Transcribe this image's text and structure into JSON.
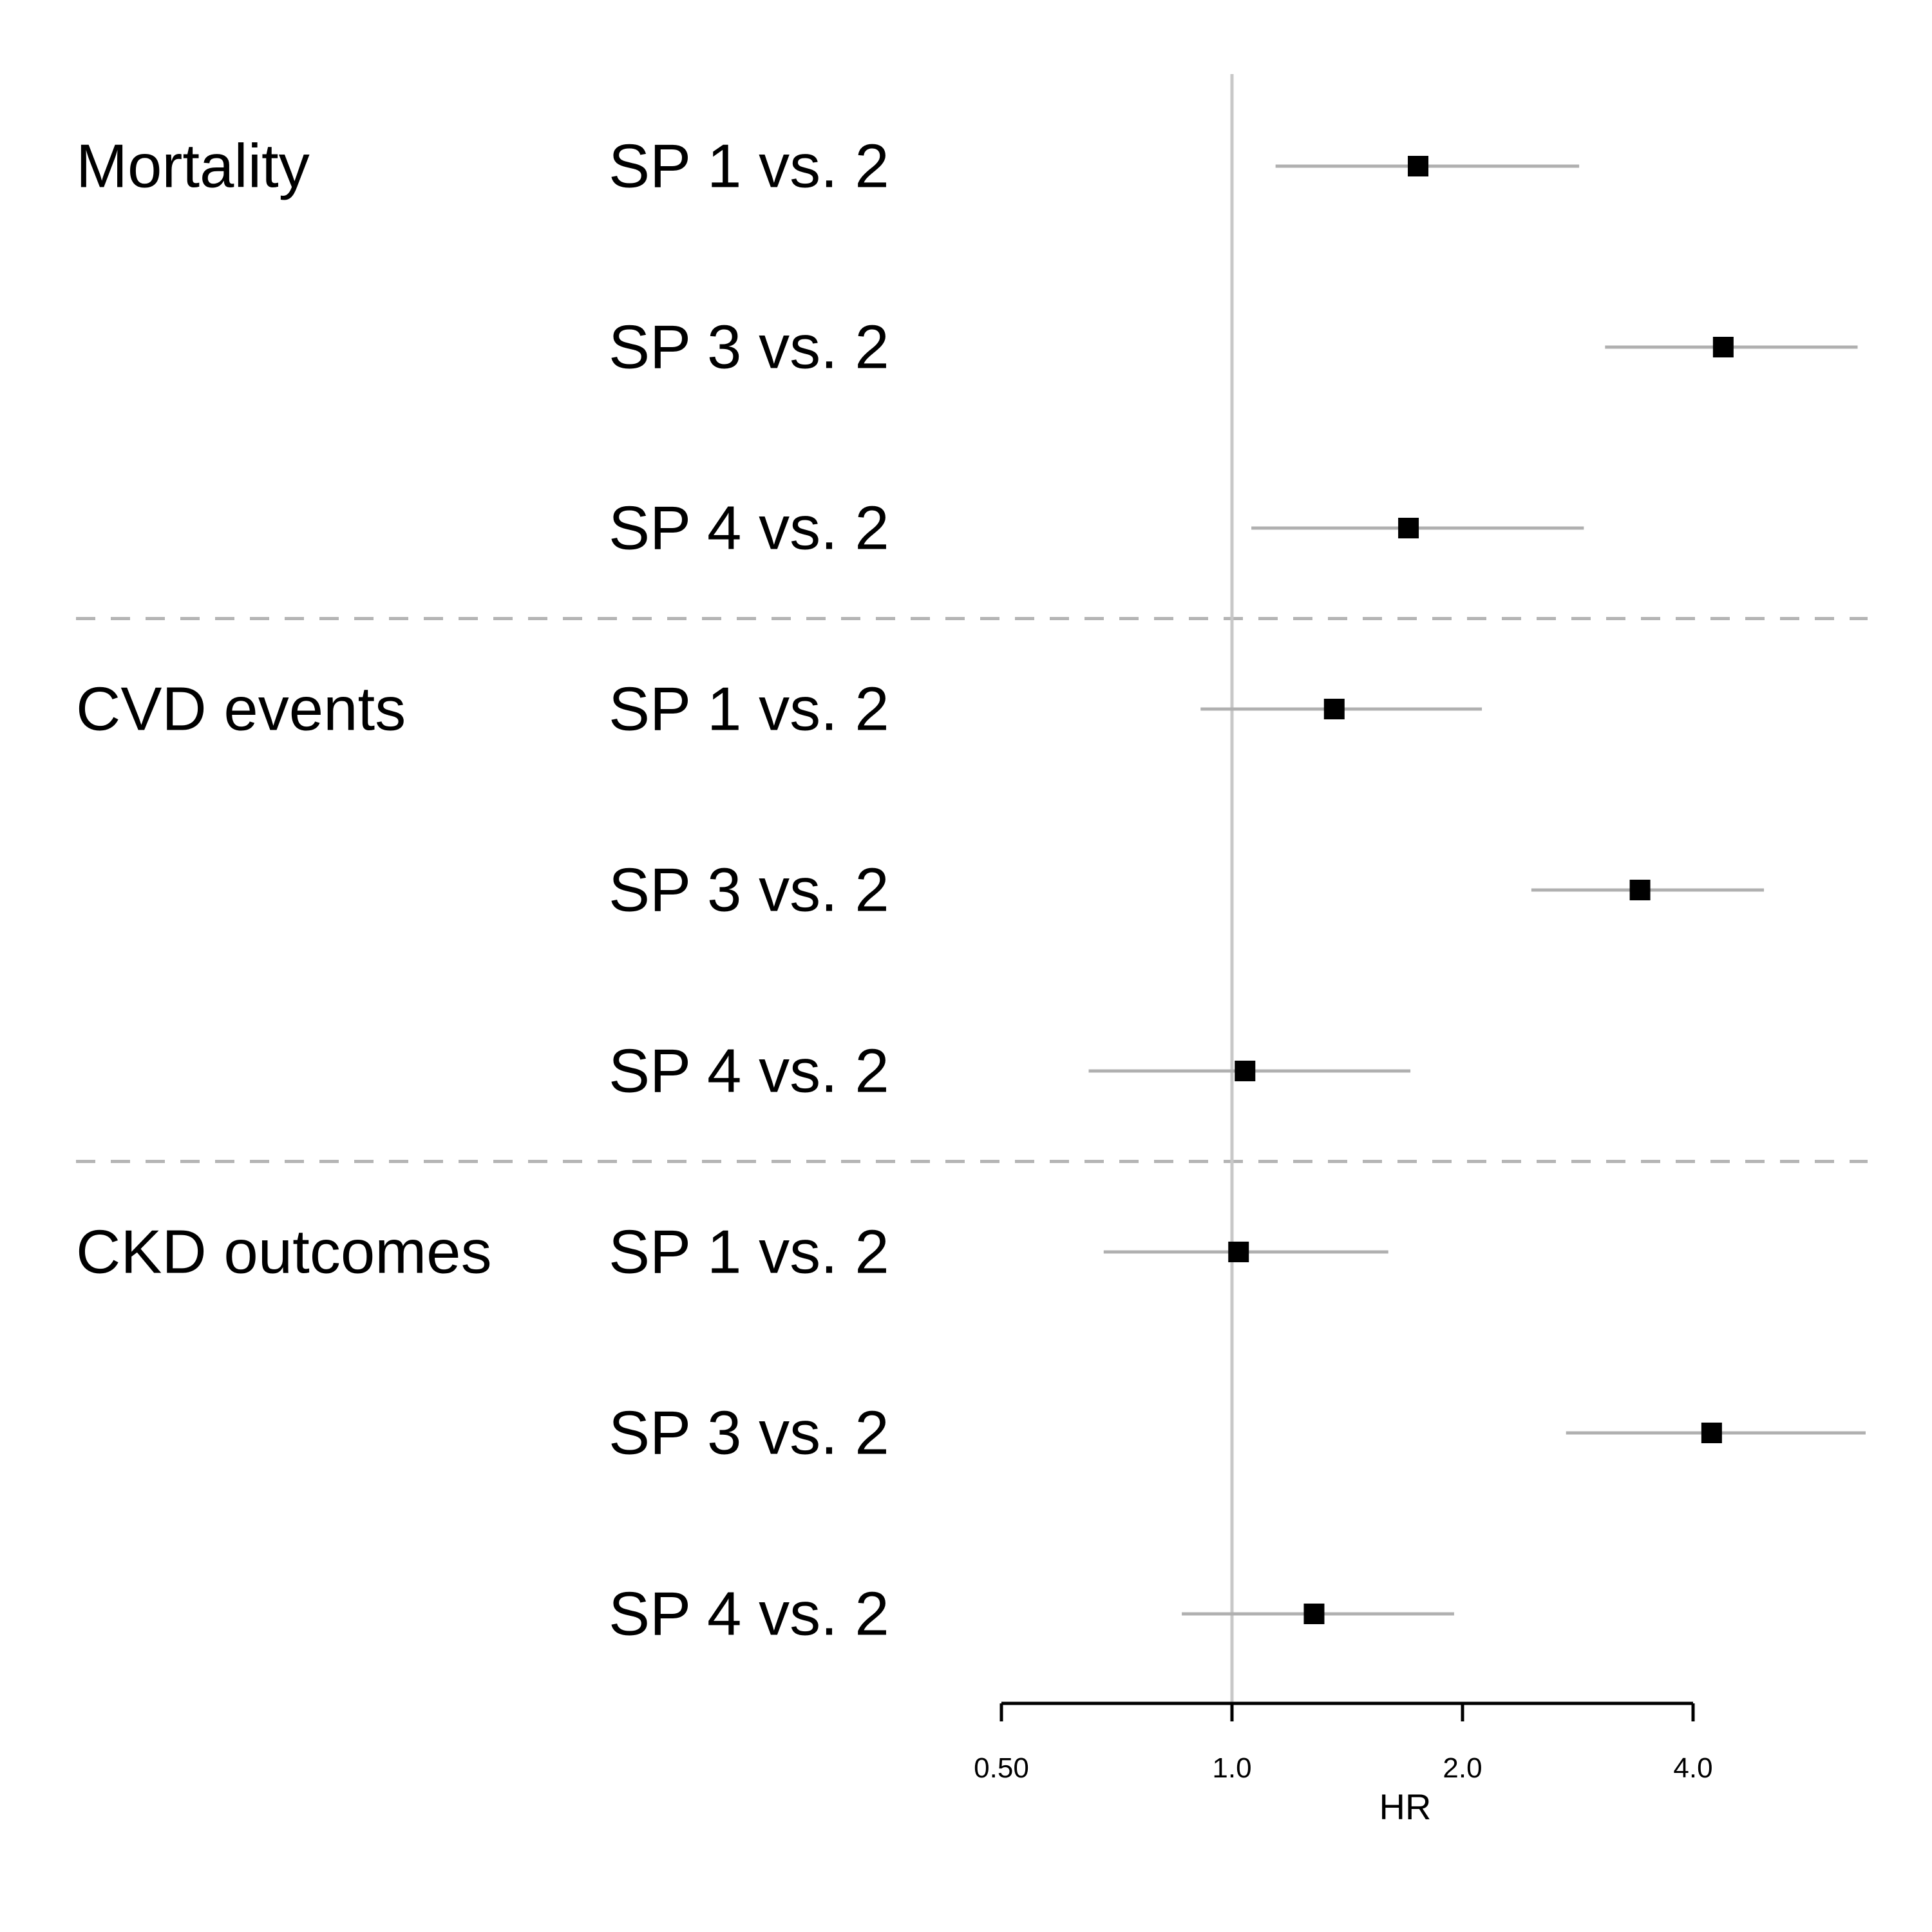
{
  "chart_data": {
    "type": "forest",
    "x_scale": "log2",
    "xlim": [
      0.5,
      5.9
    ],
    "reference_value": 1.0,
    "xlabel": "HR",
    "ticks": [
      {
        "value": 0.5,
        "label": "0.50"
      },
      {
        "value": 1.0,
        "label": "1.0"
      },
      {
        "value": 2.0,
        "label": "2.0"
      },
      {
        "value": 4.0,
        "label": "4.0"
      }
    ],
    "groups": [
      {
        "name": "Mortality",
        "rows": [
          {
            "label": "SP 1 vs. 2",
            "hr": 1.75,
            "lower": 1.14,
            "upper": 2.84
          },
          {
            "label": "SP 3 vs. 2",
            "hr": 4.38,
            "lower": 3.07,
            "upper": 6.56
          },
          {
            "label": "SP 4 vs. 2",
            "hr": 1.7,
            "lower": 1.06,
            "upper": 2.88
          }
        ]
      },
      {
        "name": "CVD events",
        "rows": [
          {
            "label": "SP 1 vs. 2",
            "hr": 1.36,
            "lower": 0.91,
            "upper": 2.12
          },
          {
            "label": "SP 3 vs. 2",
            "hr": 3.41,
            "lower": 2.46,
            "upper": 4.95
          },
          {
            "label": "SP 4 vs. 2",
            "hr": 1.04,
            "lower": 0.65,
            "upper": 1.71
          }
        ]
      },
      {
        "name": "CKD outcomes",
        "rows": [
          {
            "label": "SP 1 vs. 2",
            "hr": 1.02,
            "lower": 0.68,
            "upper": 1.6
          },
          {
            "label": "SP 3 vs. 2",
            "hr": 4.23,
            "lower": 2.73,
            "upper": 6.72
          },
          {
            "label": "SP 4 vs. 2",
            "hr": 1.28,
            "lower": 0.86,
            "upper": 1.95
          }
        ]
      }
    ]
  }
}
